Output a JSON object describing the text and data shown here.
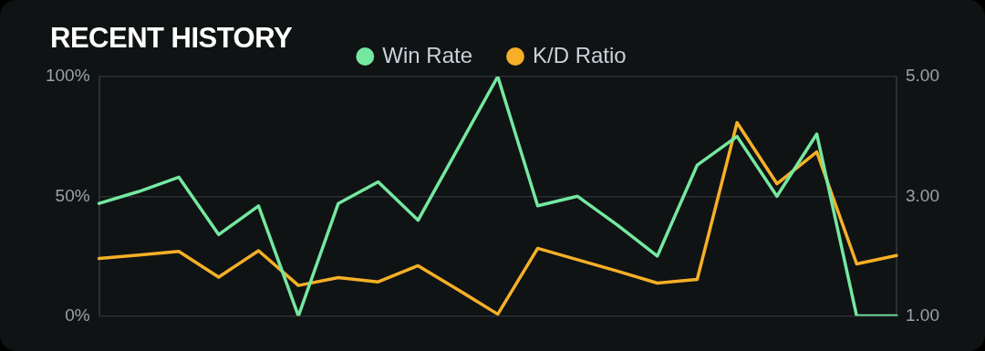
{
  "chart_data": {
    "type": "line",
    "title": "RECENT HISTORY",
    "categories": [
      null,
      null,
      null,
      null,
      null,
      null,
      null,
      null,
      null,
      null,
      null,
      null,
      null,
      null,
      null,
      null,
      null,
      null,
      null,
      null,
      null
    ],
    "series": [
      {
        "name": "Win Rate",
        "color": "#74e8a0",
        "values": [
          47,
          52,
          58,
          34,
          46,
          0,
          47,
          56,
          40,
          70,
          100,
          46,
          50,
          38,
          25,
          63,
          75,
          50,
          76,
          0,
          0
        ]
      },
      {
        "name": "K/D Ratio",
        "color": "#f5b027",
        "axis": "y2",
        "values": [
          1.96,
          2.02,
          2.08,
          1.65,
          2.09,
          1.51,
          1.64,
          1.57,
          1.84,
          1.44,
          1.03,
          2.13,
          1.94,
          1.75,
          1.55,
          1.61,
          4.23,
          3.21,
          3.74,
          1.87,
          2.01
        ]
      }
    ],
    "ylim": [
      0,
      100
    ],
    "yticks": [
      {
        "value": 0,
        "label": "0%"
      },
      {
        "value": 50,
        "label": "50%"
      },
      {
        "value": 100,
        "label": "100%"
      }
    ],
    "y2lim": [
      1,
      5
    ],
    "y2ticks": [
      {
        "value": 1,
        "label": "1.00"
      },
      {
        "value": 3,
        "label": "3.00"
      },
      {
        "value": 5,
        "label": "5.00"
      }
    ],
    "grid": "y",
    "legend": "top",
    "marker": "none",
    "line_style": "solid"
  }
}
